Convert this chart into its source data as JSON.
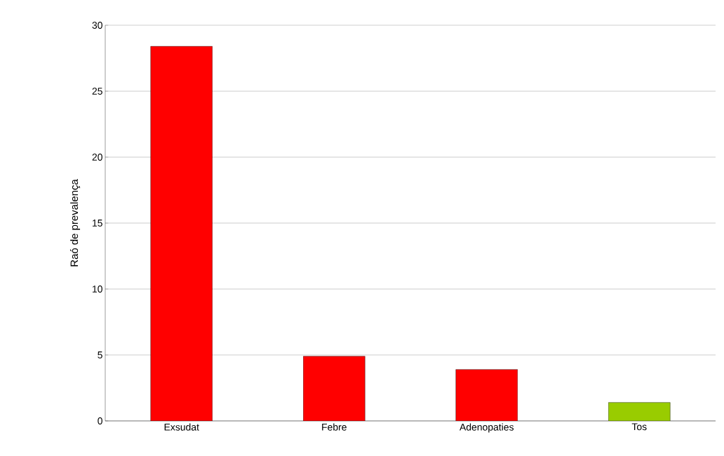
{
  "chart_data": {
    "type": "bar",
    "ylabel": "Raó de prevalença",
    "categories": [
      "Exsudat",
      "Febre",
      "Adenopaties",
      "Tos"
    ],
    "values": [
      28.4,
      4.9,
      3.9,
      1.4
    ],
    "colors": [
      "#ff0000",
      "#ff0000",
      "#ff0000",
      "#99cc00"
    ],
    "ylim": [
      0,
      30
    ],
    "yticks": [
      0,
      5,
      10,
      15,
      20,
      25,
      30
    ],
    "grid": "y"
  }
}
